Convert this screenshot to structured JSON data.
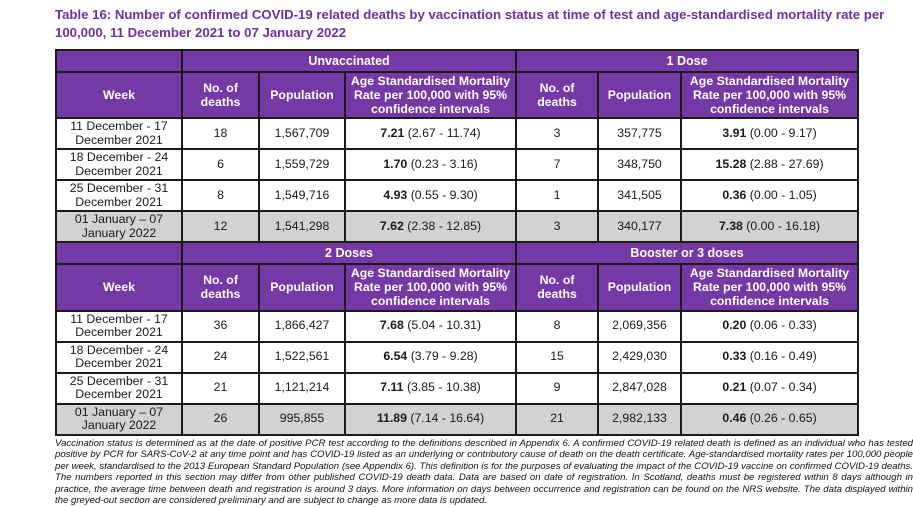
{
  "page": {
    "title": "Table 16: Number of confirmed COVID-19 related deaths by vaccination status at time of test and age-standardised mortality rate per 100,000, 11 December 2021 to 07 January 2022",
    "footnote": "Vaccination status is determined as at the date of positive PCR test according to the definitions described in Appendix 6. A confirmed COVID-19 related death is defined as an individual who has tested positive by PCR for SARS-CoV-2 at any time point and has COVID-19 listed as an underlying or contributory cause of death on the death certificate. Age-standardised mortality rates per 100,000 people per week, standardised to the 2013 European Standard Population (see Appendix 6). This definition is for the purposes of evaluating the impact of the COVID-19 vaccine on confirmed COVID-19 deaths. The numbers reported in this section may differ from other published COVID-19 death data. Data are based on date of registration. In Scotland, deaths must be registered within 8 days although in practice, the average time between death and registration is around 3 days. More information on days between occurrence and registration can be found on the NRS website. The data displayed within the greyed-out section are considered preliminary and are subject to change as more data is updated."
  },
  "colors": {
    "header_purple": "#7439A4",
    "title_purple": "#7030A0",
    "grey_row": "#D3D1D1",
    "border": "#1B1B1B"
  },
  "headers": {
    "week": "Week",
    "deaths": "No. of deaths",
    "population": "Population",
    "asmr": "Age Standardised Mortality Rate per 100,000 with 95% confidence intervals"
  },
  "sections": [
    {
      "left_group": "Unvaccinated",
      "right_group": "1 Dose",
      "rows": [
        {
          "week": "11 December - 17 December 2021",
          "left": {
            "deaths": "18",
            "population": "1,567,709",
            "rate": "7.21",
            "ci": "(2.67 - 11.74)"
          },
          "right": {
            "deaths": "3",
            "population": "357,775",
            "rate": "3.91",
            "ci": "(0.00 - 9.17)"
          }
        },
        {
          "week": "18 December - 24 December 2021",
          "left": {
            "deaths": "6",
            "population": "1,559,729",
            "rate": "1.70",
            "ci": "(0.23 - 3.16)"
          },
          "right": {
            "deaths": "7",
            "population": "348,750",
            "rate": "15.28",
            "ci": "(2.88 - 27.69)"
          }
        },
        {
          "week": "25 December - 31 December 2021",
          "left": {
            "deaths": "8",
            "population": "1,549,716",
            "rate": "4.93",
            "ci": "(0.55 - 9.30)"
          },
          "right": {
            "deaths": "1",
            "population": "341,505",
            "rate": "0.36",
            "ci": "(0.00 - 1.05)"
          }
        },
        {
          "week": "01 January – 07 January 2022",
          "left": {
            "deaths": "12",
            "population": "1,541,298",
            "rate": "7.62",
            "ci": "(2.38 - 12.85)"
          },
          "right": {
            "deaths": "3",
            "population": "340,177",
            "rate": "7.38",
            "ci": "(0.00 - 16.18)"
          },
          "preliminary": true
        }
      ]
    },
    {
      "left_group": "2 Doses",
      "right_group": "Booster or 3 doses",
      "rows": [
        {
          "week": "11 December - 17 December 2021",
          "left": {
            "deaths": "36",
            "population": "1,866,427",
            "rate": "7.68",
            "ci": "(5.04 - 10.31)"
          },
          "right": {
            "deaths": "8",
            "population": "2,069,356",
            "rate": "0.20",
            "ci": "(0.06 - 0.33)"
          }
        },
        {
          "week": "18 December - 24 December 2021",
          "left": {
            "deaths": "24",
            "population": "1,522,561",
            "rate": "6.54",
            "ci": "(3.79 - 9.28)"
          },
          "right": {
            "deaths": "15",
            "population": "2,429,030",
            "rate": "0.33",
            "ci": "(0.16 - 0.49)"
          }
        },
        {
          "week": "25 December - 31 December 2021",
          "left": {
            "deaths": "21",
            "population": "1,121,214",
            "rate": "7.11",
            "ci": "(3.85 - 10.38)"
          },
          "right": {
            "deaths": "9",
            "population": "2,847,028",
            "rate": "0.21",
            "ci": "(0.07 - 0.34)"
          }
        },
        {
          "week": "01 January – 07 January 2022",
          "left": {
            "deaths": "26",
            "population": "995,855",
            "rate": "11.89",
            "ci": "(7.14 - 16.64)"
          },
          "right": {
            "deaths": "21",
            "population": "2,982,133",
            "rate": "0.46",
            "ci": "(0.26 - 0.65)"
          },
          "preliminary": true
        }
      ]
    }
  ]
}
